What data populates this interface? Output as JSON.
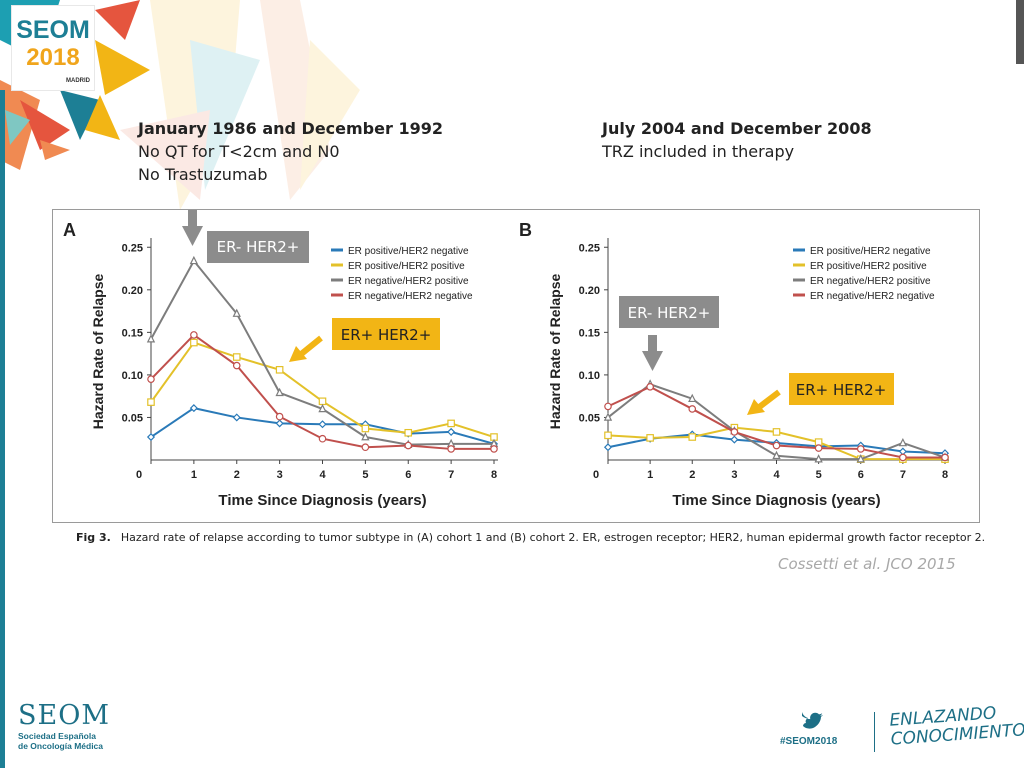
{
  "header": {
    "logo_text": "SEOM",
    "logo_year": "2018",
    "logo_city": "MADRID"
  },
  "cohort1": {
    "title": "January 1986 and December 1992",
    "line1": "No QT for T<2cm and N0",
    "line2": "No Trastuzumab"
  },
  "cohort2": {
    "title": "July 2004 and December 2008",
    "line1": "TRZ included in therapy"
  },
  "annotations": {
    "a_er_minus": "ER- HER2+",
    "a_er_plus": "ER+ HER2+",
    "b_er_minus": "ER- HER2+",
    "b_er_plus": "ER+ HER2+"
  },
  "caption": {
    "label": "Fig 3.",
    "text": "Hazard rate of relapse according to tumor subtype in (A) cohort 1 and (B) cohort 2. ER, estrogen receptor; HER2, human epidermal growth factor receptor 2."
  },
  "citation": "Cossetti et al. JCO 2015",
  "footer": {
    "seom": "SEOM",
    "seom_line1": "Sociedad Española",
    "seom_line2": "de Oncología Médica",
    "hashtag": "#SEOM2018",
    "tagline1": "ENLAZANDO",
    "tagline2": "CONOCIMIENTO"
  },
  "colors": {
    "er_pos_her2_neg": "#2a7ab8",
    "er_pos_her2_pos": "#e3c12a",
    "er_neg_her2_pos": "#7d7d7d",
    "er_neg_her2_neg": "#c0504d",
    "annot_gray": "#8c8c8c",
    "annot_yellow": "#f2b515",
    "brand_teal": "#1d7f95"
  },
  "chart_data": [
    {
      "type": "line",
      "panel": "A",
      "x": [
        0,
        1,
        2,
        3,
        4,
        5,
        6,
        7,
        8
      ],
      "xlabel": "Time Since Diagnosis (years)",
      "ylabel": "Hazard Rate of Relapse",
      "xlim": [
        0,
        8
      ],
      "ylim": [
        0,
        0.25
      ],
      "yticks": [
        "0.05",
        "0.10",
        "0.15",
        "0.20",
        "0.25"
      ],
      "xticks": [
        "0",
        "1",
        "2",
        "3",
        "4",
        "5",
        "6",
        "7",
        "8"
      ],
      "legend": "top-right",
      "series": [
        {
          "name": "ER positive/HER2 negative",
          "marker": "diamond",
          "values": [
            0.027,
            0.061,
            0.05,
            0.043,
            0.042,
            0.042,
            0.031,
            0.033,
            0.019
          ]
        },
        {
          "name": "ER positive/HER2 positive",
          "marker": "square",
          "values": [
            0.068,
            0.138,
            0.121,
            0.106,
            0.069,
            0.037,
            0.032,
            0.043,
            0.027
          ]
        },
        {
          "name": "ER negative/HER2 positive",
          "marker": "triangle",
          "values": [
            0.142,
            0.234,
            0.172,
            0.079,
            0.06,
            0.027,
            0.018,
            0.019,
            0.019
          ]
        },
        {
          "name": "ER negative/HER2 negative",
          "marker": "circle",
          "values": [
            0.095,
            0.147,
            0.111,
            0.051,
            0.025,
            0.015,
            0.017,
            0.013,
            0.013
          ]
        }
      ]
    },
    {
      "type": "line",
      "panel": "B",
      "x": [
        0,
        1,
        2,
        3,
        4,
        5,
        6,
        7,
        8
      ],
      "xlabel": "Time Since Diagnosis (years)",
      "ylabel": "Hazard Rate of Relapse",
      "xlim": [
        0,
        8
      ],
      "ylim": [
        0,
        0.25
      ],
      "yticks": [
        "0.05",
        "0.10",
        "0.15",
        "0.20",
        "0.25"
      ],
      "xticks": [
        "0",
        "1",
        "2",
        "3",
        "4",
        "5",
        "6",
        "7",
        "8"
      ],
      "legend": "top-right",
      "series": [
        {
          "name": "ER positive/HER2 negative",
          "marker": "diamond",
          "values": [
            0.015,
            0.025,
            0.03,
            0.024,
            0.02,
            0.016,
            0.017,
            0.01,
            0.008
          ]
        },
        {
          "name": "ER positive/HER2 positive",
          "marker": "square",
          "values": [
            0.029,
            0.026,
            0.027,
            0.038,
            0.033,
            0.021,
            0.001,
            0.001,
            0.001
          ]
        },
        {
          "name": "ER negative/HER2 positive",
          "marker": "triangle",
          "values": [
            0.05,
            0.089,
            0.072,
            0.034,
            0.005,
            0.001,
            0.001,
            0.02,
            0.003
          ]
        },
        {
          "name": "ER negative/HER2 negative",
          "marker": "circle",
          "values": [
            0.063,
            0.086,
            0.06,
            0.033,
            0.017,
            0.014,
            0.013,
            0.003,
            0.003
          ]
        }
      ]
    }
  ]
}
